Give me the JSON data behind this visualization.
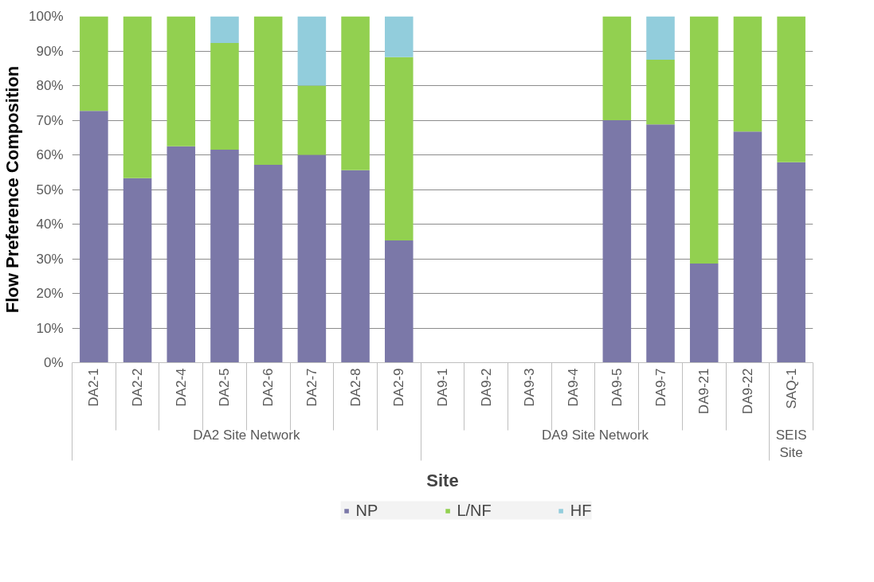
{
  "chart_data": {
    "type": "bar",
    "stacked": true,
    "xlabel": "Site",
    "ylabel": "Flow Preference Composition",
    "categories": [
      "DA2-1",
      "DA2-2",
      "DA2-4",
      "DA2-5",
      "DA2-6",
      "DA2-7",
      "DA2-8",
      "DA2-9",
      "DA9-1",
      "DA9-2",
      "DA9-3",
      "DA9-4",
      "DA9-5",
      "DA9-7",
      "DA9-21",
      "DA9-22",
      "SAQ-1"
    ],
    "series": [
      {
        "name": "NP",
        "color": "#7b78a8",
        "values": [
          72.7,
          53.3,
          62.5,
          61.5,
          57.1,
          60.0,
          55.6,
          35.3,
          null,
          null,
          null,
          null,
          70.0,
          68.8,
          28.6,
          66.7,
          57.9
        ]
      },
      {
        "name": "L/NF",
        "color": "#92d050",
        "values": [
          27.3,
          46.7,
          37.5,
          30.8,
          42.9,
          20.0,
          44.4,
          52.9,
          null,
          null,
          null,
          null,
          30.0,
          18.7,
          71.4,
          33.3,
          42.1
        ]
      },
      {
        "name": "HF",
        "color": "#92cddc",
        "values": [
          null,
          null,
          null,
          7.7,
          null,
          20.0,
          null,
          11.8,
          null,
          null,
          null,
          null,
          null,
          12.5,
          null,
          null,
          null
        ]
      }
    ],
    "annotations": [
      "DA2 Site Network",
      "DA9 Site Network",
      "SEIS Site"
    ],
    "ylim": [
      0,
      100
    ],
    "yticks": [
      {
        "value": 0,
        "label": "0%"
      },
      {
        "value": 10,
        "label": "10%"
      },
      {
        "value": 20,
        "label": "20%"
      },
      {
        "value": 30,
        "label": "30%"
      },
      {
        "value": 40,
        "label": "40%"
      },
      {
        "value": 50,
        "label": "50%"
      },
      {
        "value": 60,
        "label": "60%"
      },
      {
        "value": 70,
        "label": "70%"
      },
      {
        "value": 80,
        "label": "80%"
      },
      {
        "value": 90,
        "label": "90%"
      },
      {
        "value": 100,
        "label": "100%"
      }
    ],
    "grid": "y",
    "legend": "bottom"
  }
}
